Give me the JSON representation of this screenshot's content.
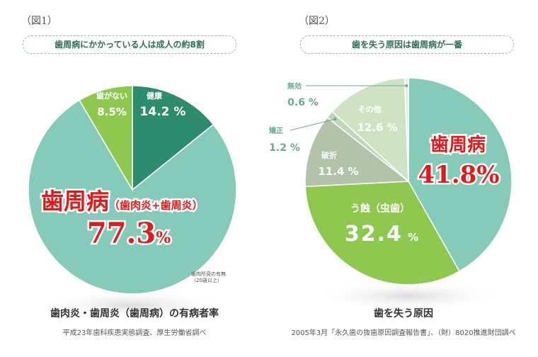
{
  "figures": [
    {
      "label": "（図1）",
      "subtitle": "歯周病にかかっている人は成人の約8割",
      "caption": "歯肉炎・歯周炎（歯周病）の有病者率",
      "source": "平成23年歯科疾患実態調査、厚生労働省調べ",
      "note_line1": "歯肉所見の有無",
      "note_line2": "（20歳以上）"
    },
    {
      "label": "（図2）",
      "subtitle": "歯を失う原因は歯周病が一番",
      "caption": "歯を失う原因",
      "source": "2005年3月「永久歯の抜歯原因調査報告書」、（財）8020推進財団調べ"
    }
  ],
  "chart_data": [
    {
      "type": "pie",
      "title": "",
      "unit": "%",
      "slices": [
        {
          "label": "健康",
          "value": 14.2,
          "value_text": "14.2",
          "color": "#2e8c6e"
        },
        {
          "label": "歯周病",
          "label_sub": "（歯肉炎+歯周炎）",
          "value": 77.3,
          "value_text": "77.3",
          "color": "#86cbb9"
        },
        {
          "label": "歯がない",
          "value": 8.5,
          "value_text": "8.5",
          "color": "#8fc84f"
        }
      ]
    },
    {
      "type": "pie",
      "title": "",
      "unit": "%",
      "slices": [
        {
          "label": "歯周病",
          "value": 41.8,
          "value_text": "41.8",
          "color": "#86cbb9"
        },
        {
          "label": "う蝕（虫歯）",
          "value": 32.4,
          "value_text": "32.4",
          "color": "#8fc84f"
        },
        {
          "label": "破折",
          "value": 11.4,
          "value_text": "11.4",
          "color": "#b2c3aa"
        },
        {
          "label": "矯正",
          "value": 1.2,
          "value_text": "1.2",
          "color": "#c3d4bb"
        },
        {
          "label": "その他",
          "value": 12.6,
          "value_text": "12.6",
          "color": "#cfe3c4"
        },
        {
          "label": "無効",
          "value": 0.6,
          "value_text": "0.6",
          "color": "#e3ede0"
        }
      ]
    }
  ],
  "colors": {
    "highlight_red": "#e41a1a",
    "pill_border": "#8fbfb0",
    "small_label": "#6aa898"
  }
}
